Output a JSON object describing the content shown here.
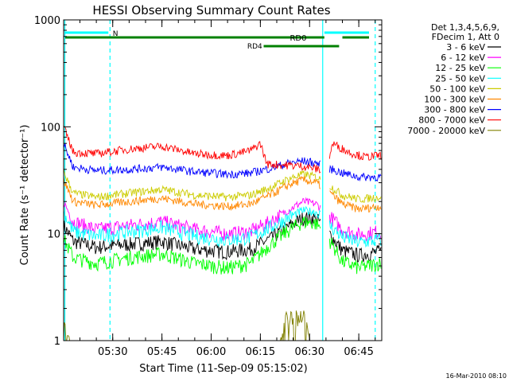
{
  "chart_data": {
    "type": "line",
    "title": "HESSI Observing Summary Count Rates",
    "xlabel": "Start Time (11-Sep-09 05:15:02)",
    "ylabel": "Count Rate (s⁻¹ detector⁻¹)",
    "y_scale": "log",
    "ylim": [
      1,
      1000
    ],
    "xlim": [
      "05:15:02",
      "06:52"
    ],
    "x_ticks": [
      "05:30",
      "05:45",
      "06:00",
      "06:15",
      "06:30",
      "06:45"
    ],
    "y_ticks": [
      "1",
      "10",
      "100",
      "1000"
    ],
    "legend_header": [
      "Det 1,3,4,5,6,9,",
      "FDecim 1, Att 0"
    ],
    "legend_position": "right",
    "series": [
      {
        "name": "3 - 6 keV",
        "color": "#000000",
        "x": [
          "05:15",
          "05:18",
          "05:25",
          "05:35",
          "05:45",
          "05:55",
          "06:05",
          "06:12",
          "06:18",
          "06:24",
          "06:28",
          "06:32",
          "06:35",
          "06:40",
          "06:45",
          "06:51"
        ],
        "y": [
          12,
          8.5,
          7.5,
          8,
          8.5,
          7.2,
          6.8,
          7.2,
          9,
          12,
          14,
          14,
          11,
          7,
          6.3,
          6.8
        ]
      },
      {
        "name": "6 - 12 keV",
        "color": "#ff00ff",
        "x": [
          "05:15",
          "05:18",
          "05:25",
          "05:35",
          "05:45",
          "05:55",
          "06:05",
          "06:12",
          "06:18",
          "06:24",
          "06:28",
          "06:32",
          "06:35",
          "06:40",
          "06:45",
          "06:51"
        ],
        "y": [
          20,
          13,
          11,
          12,
          13,
          11,
          10,
          10.5,
          13,
          17,
          20,
          19,
          16,
          11,
          9.8,
          10.5
        ]
      },
      {
        "name": "12 - 25 keV",
        "color": "#00ff00",
        "x": [
          "05:15",
          "05:18",
          "05:25",
          "05:35",
          "05:45",
          "05:55",
          "06:05",
          "06:12",
          "06:18",
          "06:24",
          "06:28",
          "06:32",
          "06:35",
          "06:40",
          "06:45",
          "06:51"
        ],
        "y": [
          9,
          6,
          5.3,
          6,
          6.5,
          5.3,
          4.8,
          5.3,
          8,
          11,
          13,
          12.5,
          10,
          5.5,
          4.8,
          5.3
        ]
      },
      {
        "name": "25 - 50 keV",
        "color": "#00ffff",
        "x": [
          "05:15",
          "05:18",
          "05:25",
          "05:35",
          "05:45",
          "05:55",
          "06:05",
          "06:12",
          "06:18",
          "06:24",
          "06:28",
          "06:32",
          "06:35",
          "06:40",
          "06:45",
          "06:51"
        ],
        "y": [
          16,
          10.5,
          9.5,
          10.5,
          11.5,
          9.5,
          8.8,
          9.3,
          11.5,
          14.5,
          16.5,
          16,
          13,
          9.3,
          8.3,
          8.8
        ]
      },
      {
        "name": "50 - 100 keV",
        "color": "#cccc00",
        "x": [
          "05:15",
          "05:18",
          "05:25",
          "05:35",
          "05:45",
          "05:55",
          "06:05",
          "06:12",
          "06:18",
          "06:24",
          "06:28",
          "06:32",
          "06:35",
          "06:40",
          "06:45",
          "06:51"
        ],
        "y": [
          38,
          24,
          22,
          24,
          26,
          23,
          22,
          23,
          27,
          33,
          36,
          34,
          30,
          23,
          21,
          22
        ]
      },
      {
        "name": "100 - 300 keV",
        "color": "#ff8800",
        "x": [
          "05:15",
          "05:18",
          "05:25",
          "05:35",
          "05:45",
          "05:55",
          "06:05",
          "06:12",
          "06:18",
          "06:24",
          "06:28",
          "06:32",
          "06:35",
          "06:40",
          "06:45",
          "06:51"
        ],
        "y": [
          32,
          20,
          18.5,
          20,
          21.5,
          19,
          18,
          19,
          23,
          29,
          32,
          30,
          26,
          19,
          17,
          18
        ]
      },
      {
        "name": "300 - 800 keV",
        "color": "#0000ff",
        "x": [
          "05:15",
          "05:18",
          "05:25",
          "05:35",
          "05:45",
          "05:55",
          "06:05",
          "06:12",
          "06:18",
          "06:24",
          "06:28",
          "06:32",
          "06:35",
          "06:40",
          "06:45",
          "06:51"
        ],
        "y": [
          70,
          42,
          39,
          40,
          42,
          38,
          36,
          37,
          41,
          46,
          48,
          46,
          42,
          37,
          34,
          34
        ]
      },
      {
        "name": "800 - 7000 keV",
        "color": "#ff0000",
        "x": [
          "05:15",
          "05:18",
          "05:25",
          "05:35",
          "05:45",
          "05:55",
          "06:05",
          "06:12",
          "06:15",
          "06:17",
          "06:22",
          "06:28",
          "06:33",
          "06:35",
          "06:37",
          "06:42",
          "06:47",
          "06:51"
        ],
        "y": [
          100,
          58,
          56,
          62,
          66,
          56,
          54,
          60,
          70,
          45,
          44,
          43,
          40,
          36,
          70,
          58,
          52,
          54
        ]
      },
      {
        "name": "7000 - 20000 keV",
        "color": "#808000",
        "x": [
          "05:15",
          "05:17",
          "06:15",
          "06:18",
          "06:21",
          "06:23",
          "06:25",
          "06:27",
          "06:29",
          "06:30",
          "06:52"
        ],
        "y": [
          1.4,
          1,
          1,
          1,
          1,
          1.6,
          1.8,
          1.7,
          1.6,
          1,
          1
        ]
      }
    ],
    "annotations": [
      "N",
      "RD0",
      "RD4"
    ],
    "footer": "16-Mar-2010 08:10"
  }
}
